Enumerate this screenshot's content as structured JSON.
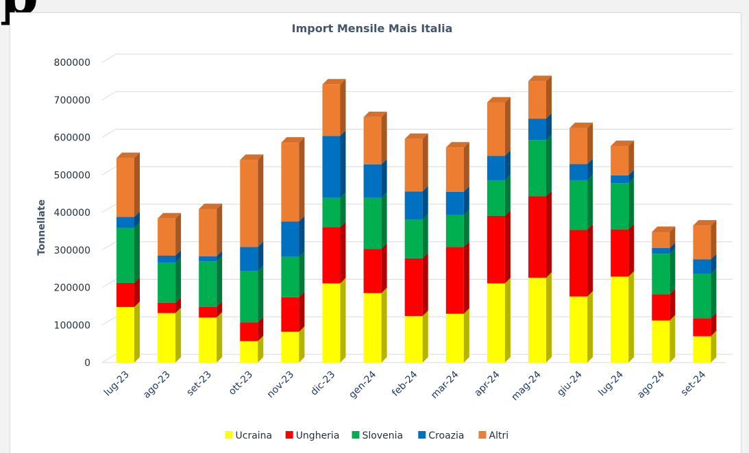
{
  "page": {
    "fragment": "p"
  },
  "chart_data": {
    "type": "bar",
    "stacked": true,
    "style": "3d-column",
    "title": "Import Mensile Mais Italia",
    "xlabel": "",
    "ylabel": "Tonnellate",
    "ylim": [
      0,
      800000
    ],
    "yticks": [
      0,
      100000,
      200000,
      300000,
      400000,
      500000,
      600000,
      700000,
      800000
    ],
    "ytick_labels": [
      "0",
      "100000",
      "200000",
      "300000",
      "400000",
      "500000",
      "600000",
      "700000",
      "800000"
    ],
    "grid": true,
    "legend_position": "bottom",
    "categories": [
      "lug-23",
      "ago-23",
      "set-23",
      "ott-23",
      "nov-23",
      "dic-23",
      "gen-24",
      "feb-24",
      "mar-24",
      "apr-24",
      "mag-24",
      "giu-24",
      "lug-24",
      "ago-24",
      "set-24"
    ],
    "series": [
      {
        "name": "Ucraina",
        "color": "#ffff00",
        "side": "#b3b300",
        "top": "#e6e600",
        "values": [
          148000,
          132000,
          120000,
          57000,
          82000,
          211000,
          185000,
          124000,
          130000,
          211000,
          226000,
          176000,
          229000,
          112000,
          70000
        ]
      },
      {
        "name": "Ungheria",
        "color": "#ff0000",
        "side": "#b30000",
        "top": "#e60000",
        "values": [
          64000,
          27000,
          28000,
          50000,
          92000,
          150000,
          118000,
          154000,
          178000,
          180000,
          217000,
          178000,
          126000,
          70000,
          48000
        ]
      },
      {
        "name": "Slovenia",
        "color": "#00b050",
        "side": "#007a38",
        "top": "#009e48",
        "values": [
          147000,
          107000,
          122000,
          137000,
          108000,
          78000,
          136000,
          103000,
          85000,
          95000,
          150000,
          132000,
          123000,
          108000,
          118000
        ]
      },
      {
        "name": "Croazia",
        "color": "#0070c0",
        "side": "#004e86",
        "top": "#0065ad",
        "values": [
          29000,
          19000,
          13000,
          64000,
          94000,
          165000,
          89000,
          75000,
          62000,
          65000,
          57000,
          43000,
          21000,
          15000,
          39000
        ]
      },
      {
        "name": "Altri",
        "color": "#ed7d31",
        "side": "#a65722",
        "top": "#d5702c",
        "values": [
          157000,
          99000,
          126000,
          232000,
          210000,
          137000,
          126000,
          140000,
          118000,
          142000,
          100000,
          96000,
          78000,
          43000,
          90000
        ]
      }
    ]
  }
}
